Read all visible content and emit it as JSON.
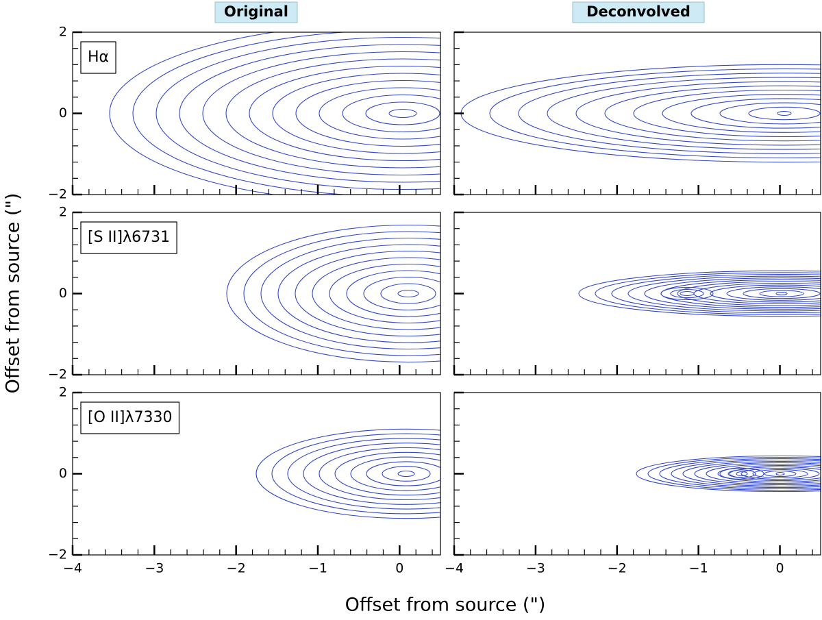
{
  "chart_data": {
    "type": "contour",
    "columns": [
      "Original",
      "Deconvolved"
    ],
    "rows": [
      "Hα",
      "[S II]λ6731",
      "[O II]λ7330"
    ],
    "xlabel": "Offset from source (\")",
    "ylabel": "Offset from source (\")",
    "xlim": [
      -4,
      0.5
    ],
    "ylim": [
      -2,
      2
    ],
    "xticks": [
      {
        "value": -4,
        "label": "−4"
      },
      {
        "value": -3,
        "label": "−3"
      },
      {
        "value": -2,
        "label": "−2"
      },
      {
        "value": -1,
        "label": "−1"
      },
      0
    ],
    "yticks": [
      {
        "value": -2,
        "label": "−2"
      },
      0,
      2
    ],
    "xminorticks": [
      -3.8,
      -3.6,
      -3.4,
      -3.2,
      -2.8,
      -2.6,
      -2.4,
      -2.2,
      -1.8,
      -1.6,
      -1.4,
      -1.2,
      -0.8,
      -0.6,
      -0.4,
      -0.2,
      0.2,
      0.4
    ],
    "yminorticks": [
      -1.6,
      -1.2,
      -0.8,
      -0.4,
      0.4,
      0.8,
      1.2,
      1.6
    ],
    "color": "#3347c4"
  }
}
